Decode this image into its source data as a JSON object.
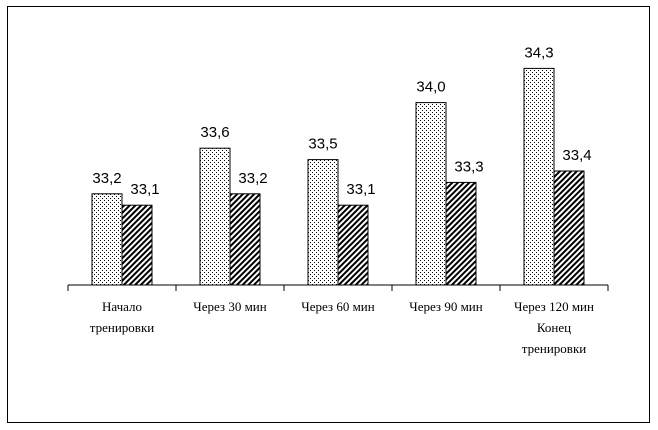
{
  "chart_data": {
    "type": "bar",
    "title": "",
    "xlabel": "",
    "ylabel": "",
    "categories": [
      [
        "Начало",
        "тренировки"
      ],
      [
        "Через 30 мин"
      ],
      [
        "Через 60 мин"
      ],
      [
        "Через 90 мин"
      ],
      [
        "Через 120 мин",
        "Конец",
        "тренировки"
      ]
    ],
    "series": [
      {
        "pattern": "dots",
        "values": [
          33.2,
          33.6,
          33.5,
          34.0,
          34.3
        ],
        "labels": [
          "33,2",
          "33,6",
          "33,5",
          "34,0",
          "34,3"
        ]
      },
      {
        "pattern": "diagonal-hatch",
        "values": [
          33.1,
          33.2,
          33.1,
          33.3,
          33.4
        ],
        "labels": [
          "33,1",
          "33,2",
          "33,1",
          "33,3",
          "33,4"
        ]
      }
    ],
    "ylim": [
      32.4,
      34.4
    ],
    "grid": false,
    "legend": "none",
    "colors": {
      "stroke": "#000000",
      "fill": "#ffffff"
    }
  }
}
